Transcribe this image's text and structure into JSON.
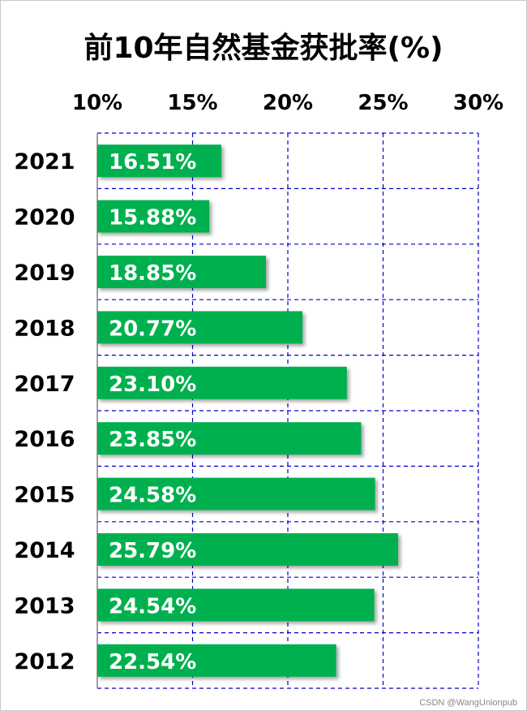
{
  "chart_data": {
    "type": "bar",
    "orientation": "horizontal",
    "title": "前10年自然基金获批率(%)",
    "categories": [
      "2021",
      "2020",
      "2019",
      "2018",
      "2017",
      "2016",
      "2015",
      "2014",
      "2013",
      "2012"
    ],
    "values": [
      16.51,
      15.88,
      18.85,
      20.77,
      23.1,
      23.85,
      24.58,
      25.79,
      24.54,
      22.54
    ],
    "data_labels": [
      "16.51%",
      "15.88%",
      "18.85%",
      "20.77%",
      "23.10%",
      "23.85%",
      "24.58%",
      "25.79%",
      "24.54%",
      "22.54%"
    ],
    "x_ticks": [
      10,
      15,
      20,
      25,
      30
    ],
    "x_tick_labels": [
      "10%",
      "15%",
      "20%",
      "25%",
      "30%"
    ],
    "xlim": [
      10,
      30
    ],
    "x_axis_position": "top",
    "grid": true,
    "grid_style": "dashed",
    "legend": "none",
    "colors": {
      "bar": "#00b050",
      "grid": "#0000cc",
      "label_text": "#ffffff",
      "axis_text": "#000000"
    }
  },
  "watermark": "CSDN @WangUnionpub"
}
